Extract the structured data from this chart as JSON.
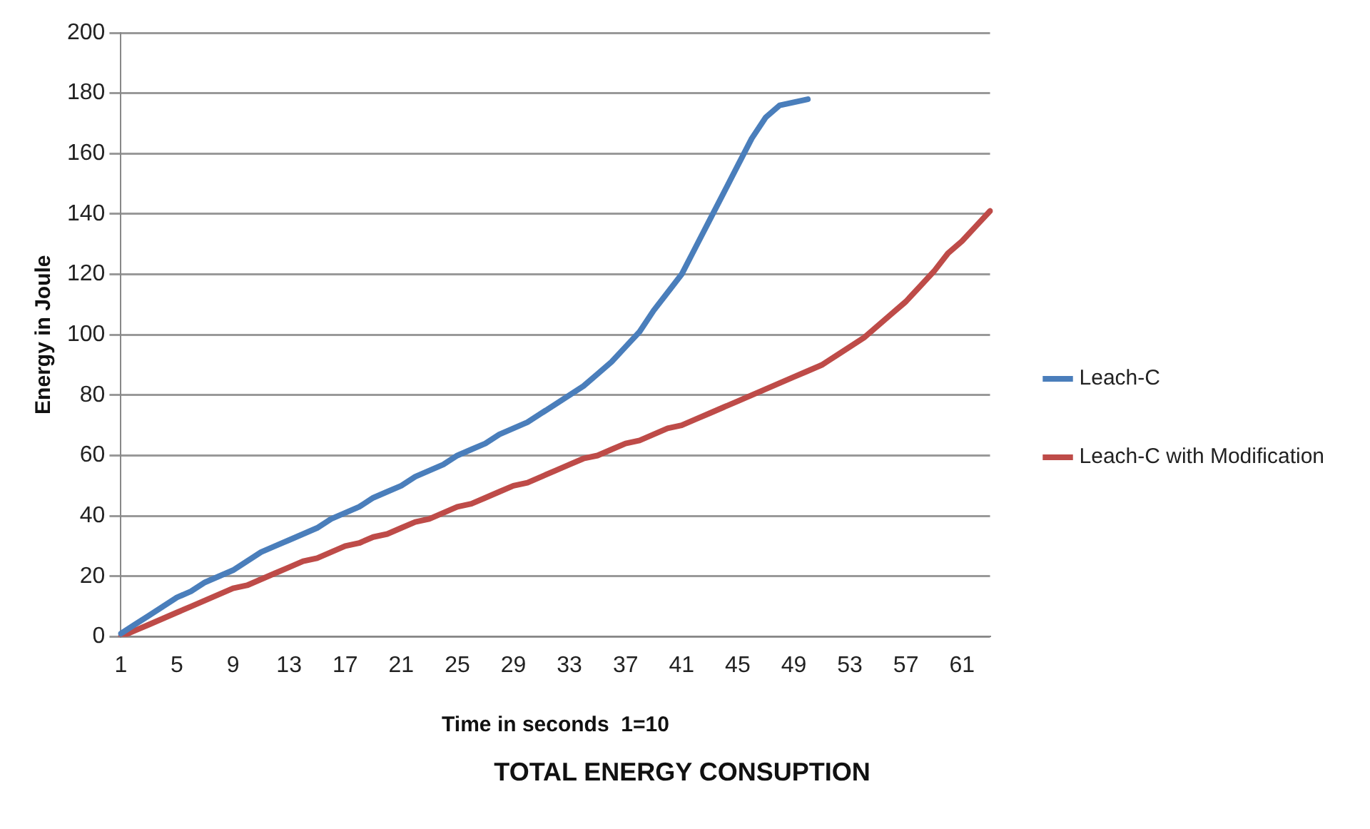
{
  "chart_data": {
    "type": "line",
    "title": "TOTAL ENERGY CONSUPTION",
    "xlabel": "Time in seconds  1=10",
    "ylabel": "Energy in Joule",
    "categories": [
      "1",
      null,
      null,
      null,
      "5",
      null,
      null,
      null,
      "9",
      null,
      null,
      null,
      "13",
      null,
      null,
      null,
      "17",
      null,
      null,
      null,
      "21",
      null,
      null,
      null,
      "25",
      null,
      null,
      null,
      "29",
      null,
      null,
      null,
      "33",
      null,
      null,
      null,
      "37",
      null,
      null,
      null,
      "41",
      null,
      null,
      null,
      "45",
      null,
      null,
      null,
      "49",
      null,
      null,
      null,
      "53",
      null,
      null,
      null,
      "57",
      null,
      null,
      null,
      "61",
      null,
      null
    ],
    "series": [
      {
        "name": "Leach-C",
        "color": "#4a7ebb",
        "values": [
          1,
          4,
          7,
          10,
          13,
          15,
          18,
          20,
          22,
          25,
          28,
          30,
          32,
          34,
          36,
          39,
          41,
          43,
          46,
          48,
          50,
          53,
          55,
          57,
          60,
          62,
          64,
          67,
          69,
          71,
          74,
          77,
          80,
          83,
          87,
          91,
          96,
          101,
          108,
          114,
          120,
          129,
          138,
          147,
          156,
          165,
          172,
          176,
          177,
          178,
          null,
          null,
          null,
          null,
          null,
          null,
          null,
          null,
          null,
          null,
          null,
          null,
          null
        ]
      },
      {
        "name": "Leach-C with Modification",
        "color": "#be4b48",
        "values": [
          0,
          2,
          4,
          6,
          8,
          10,
          12,
          14,
          16,
          17,
          19,
          21,
          23,
          25,
          26,
          28,
          30,
          31,
          33,
          34,
          36,
          38,
          39,
          41,
          43,
          44,
          46,
          48,
          50,
          51,
          53,
          55,
          57,
          59,
          60,
          62,
          64,
          65,
          67,
          69,
          70,
          72,
          74,
          76,
          78,
          80,
          82,
          84,
          86,
          88,
          90,
          93,
          96,
          99,
          103,
          107,
          111,
          116,
          121,
          127,
          131,
          136,
          141
        ]
      }
    ],
    "ylim": [
      0,
      200
    ],
    "yticks": [
      0,
      20,
      40,
      60,
      80,
      100,
      120,
      140,
      160,
      180,
      200
    ],
    "grid": "y",
    "legend": "right",
    "marker": "none",
    "line_style": "solid"
  }
}
